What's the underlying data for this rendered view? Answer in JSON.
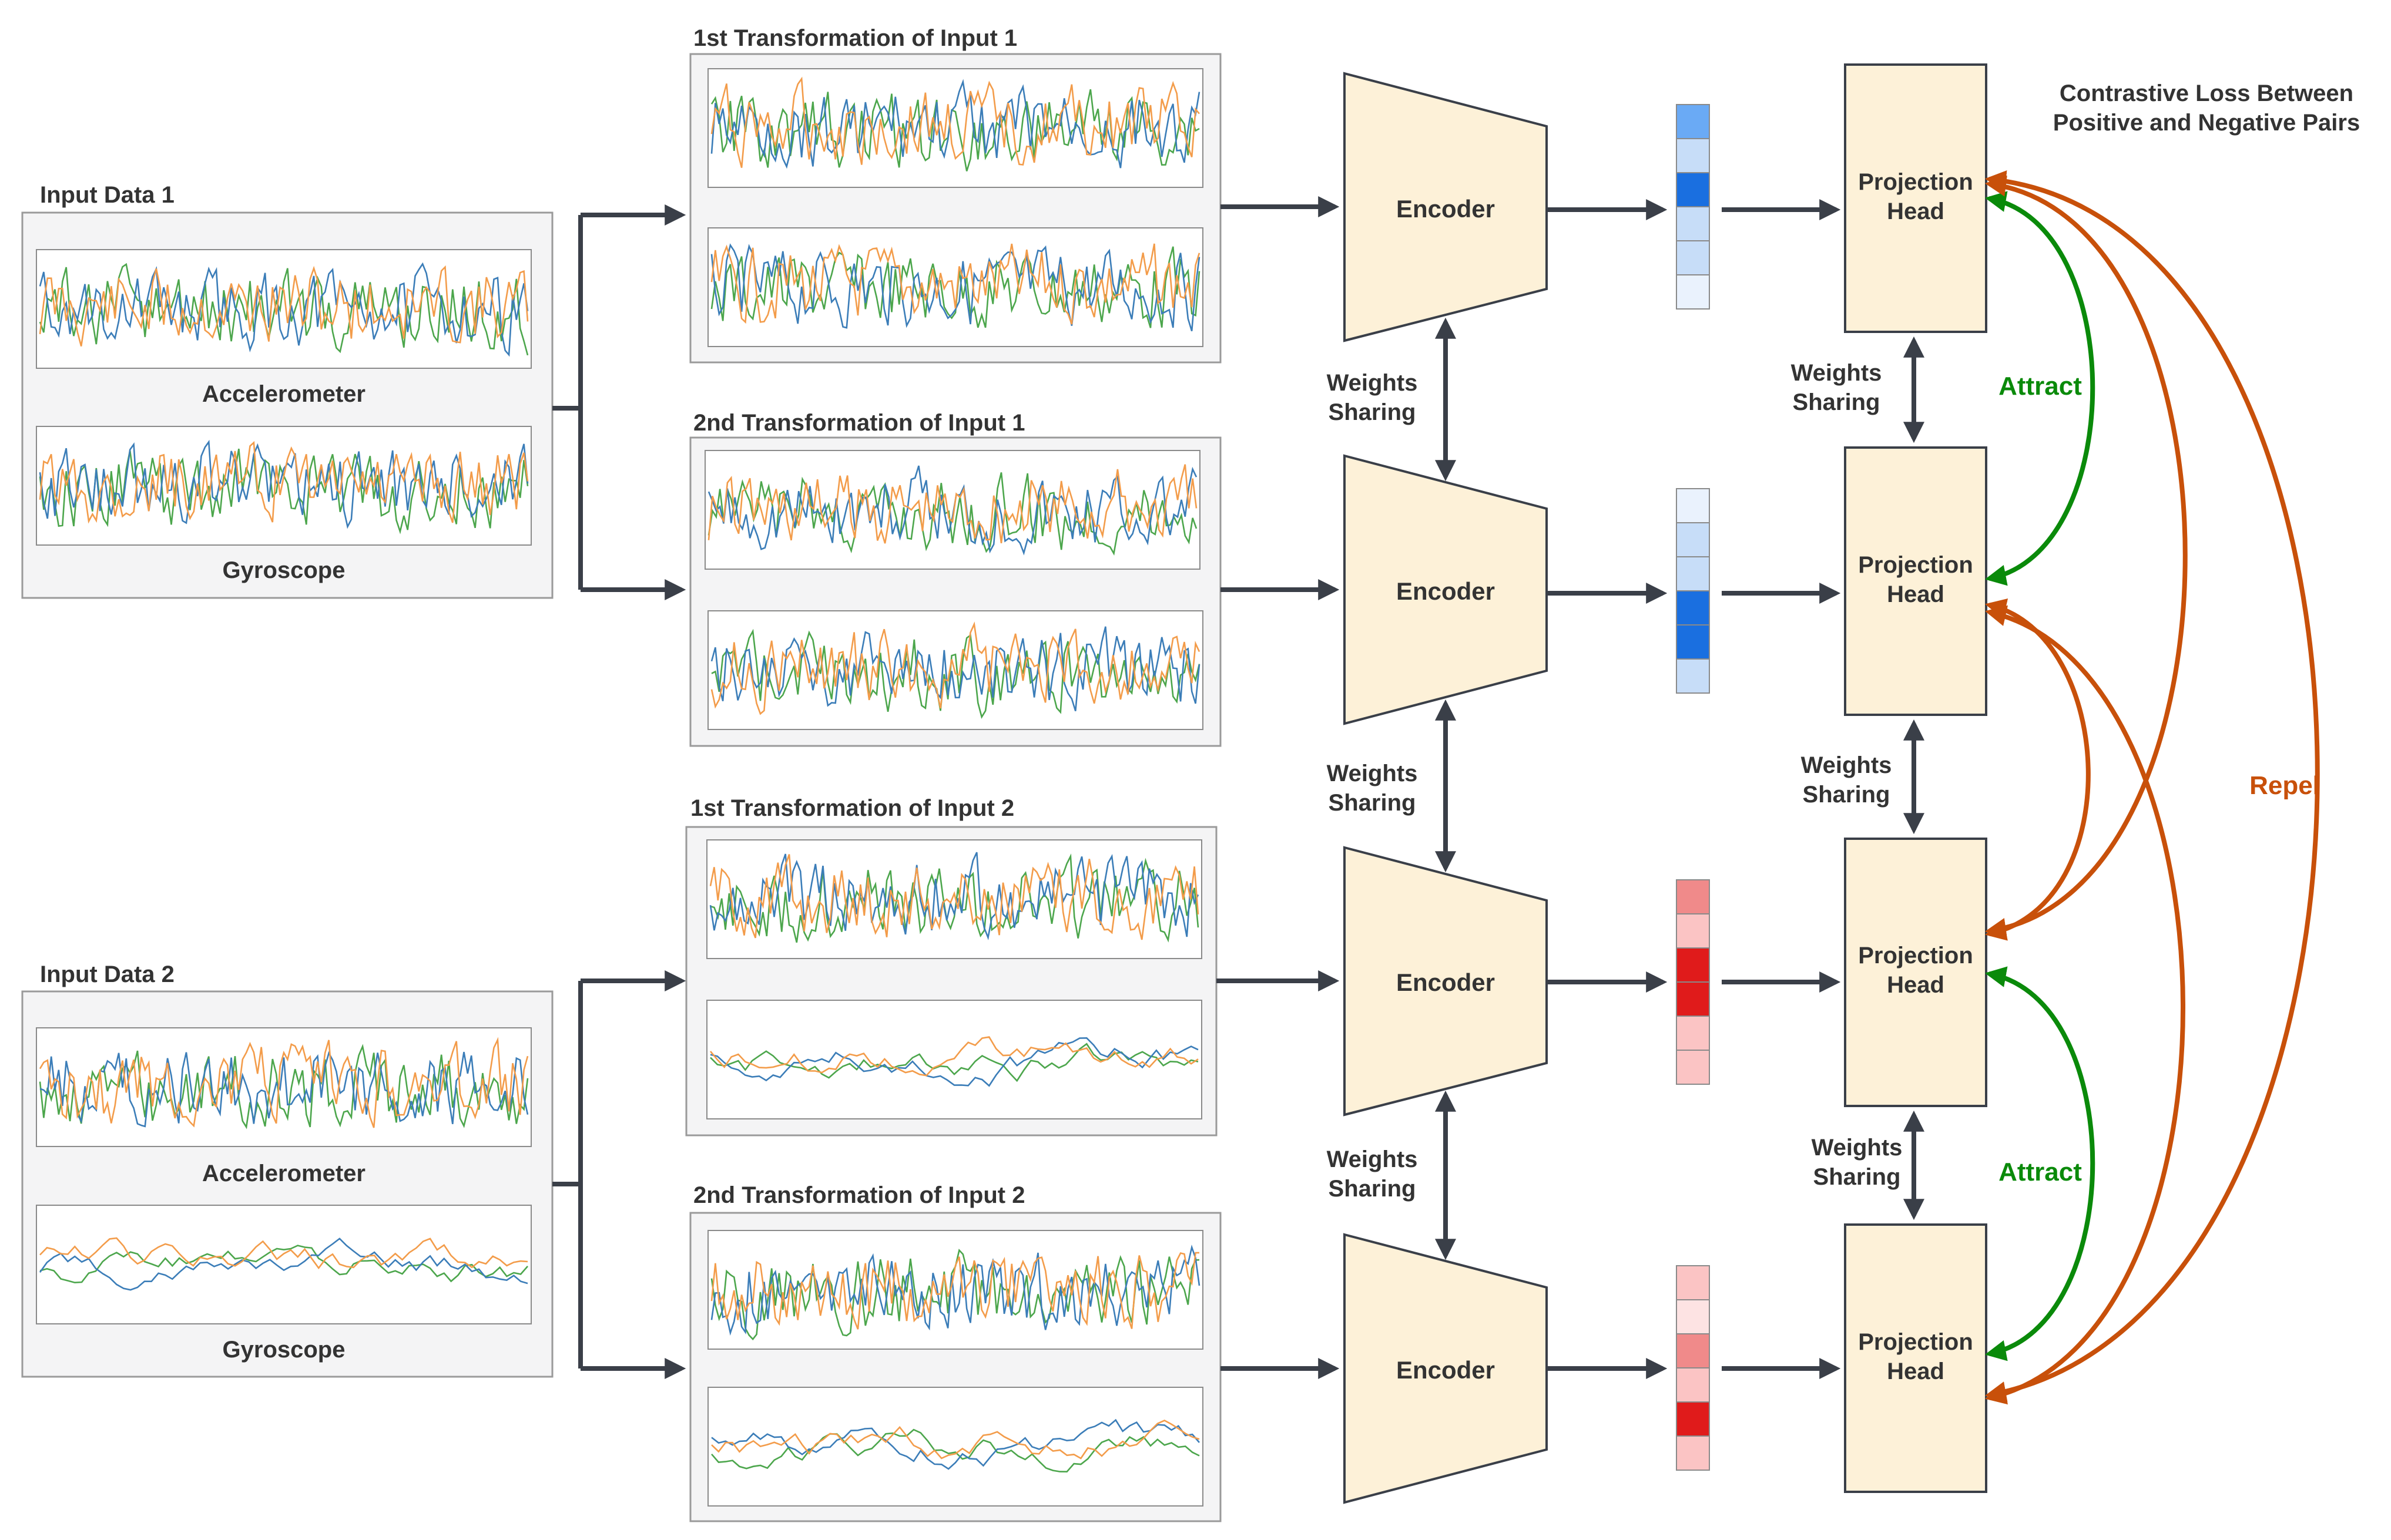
{
  "colors": {
    "box_fill": "#F4F4F5",
    "box_stroke": "#9A9A9A",
    "encoder_fill": "#FDF1D8",
    "arrow": "#3A3F48",
    "attract": "#0A8A0A",
    "repel": "#C8500A",
    "sig_orange": "#F39C4A",
    "sig_blue": "#3B7DB8",
    "sig_green": "#4CA64C",
    "blue_shades": [
      "#EAF2FD",
      "#C7DDF8",
      "#6AAAF5",
      "#1A6FE0"
    ],
    "red_shades": [
      "#FDE3E3",
      "#FBC4C4",
      "#F08A8A",
      "#E01B1B"
    ]
  },
  "inputs": [
    {
      "title": "Input Data 1",
      "sensors": [
        "Accelerometer",
        "Gyroscope"
      ]
    },
    {
      "title": "Input Data 2",
      "sensors": [
        "Accelerometer",
        "Gyroscope"
      ]
    }
  ],
  "transformations": [
    "1st Transformation of Input 1",
    "2nd Transformation of Input 1",
    "1st Transformation of Input 2",
    "2nd Transformation of Input 2"
  ],
  "encoder_label": "Encoder",
  "projection_head_label": [
    "Projection",
    "Head"
  ],
  "weights_sharing_label": [
    "Weights",
    "Sharing"
  ],
  "attract_label": "Attract",
  "repel_label": "Repel",
  "contrastive_title": [
    "Contrastive Loss Between",
    "Positive and Negative Pairs"
  ],
  "embeddings": [
    {
      "color": "blue",
      "cells": [
        2,
        1,
        3,
        1,
        1,
        0
      ]
    },
    {
      "color": "blue",
      "cells": [
        0,
        1,
        1,
        3,
        3,
        1
      ]
    },
    {
      "color": "red",
      "cells": [
        2,
        1,
        3,
        3,
        1,
        1
      ]
    },
    {
      "color": "red",
      "cells": [
        1,
        0,
        2,
        1,
        3,
        1
      ]
    }
  ]
}
